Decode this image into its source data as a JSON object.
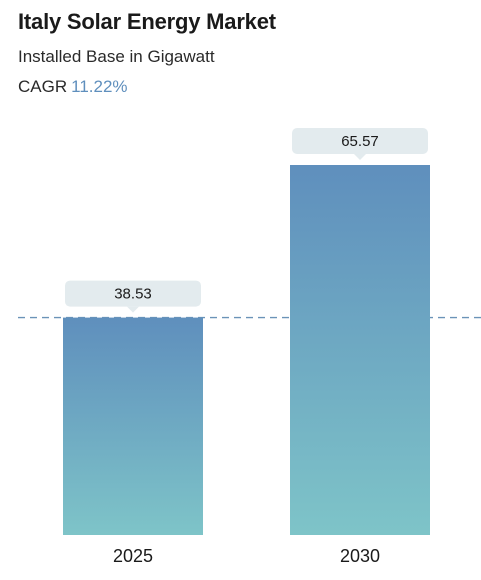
{
  "header": {
    "title": "Italy Solar Energy Market",
    "subtitle": "Installed Base in Gigawatt",
    "cagr_label": "CAGR",
    "cagr_value": "11.22%"
  },
  "colors": {
    "bar_top": "#5f8fbd",
    "bar_bottom": "#7ec4c8",
    "label_box": "#e3ebee",
    "dashed_line": "#6b93b8",
    "cagr_accent": "#5f8fbd"
  },
  "chart_data": {
    "type": "bar",
    "title": "Italy Solar Energy Market",
    "subtitle": "Installed Base in Gigawatt",
    "categories": [
      "2025",
      "2030"
    ],
    "values": [
      38.53,
      65.57
    ],
    "value_labels": [
      "38.53",
      "65.57"
    ],
    "reference_line": {
      "value": 38.53,
      "style": "dashed"
    },
    "xlabel": "",
    "ylabel": "",
    "grid": false,
    "legend": "none"
  }
}
